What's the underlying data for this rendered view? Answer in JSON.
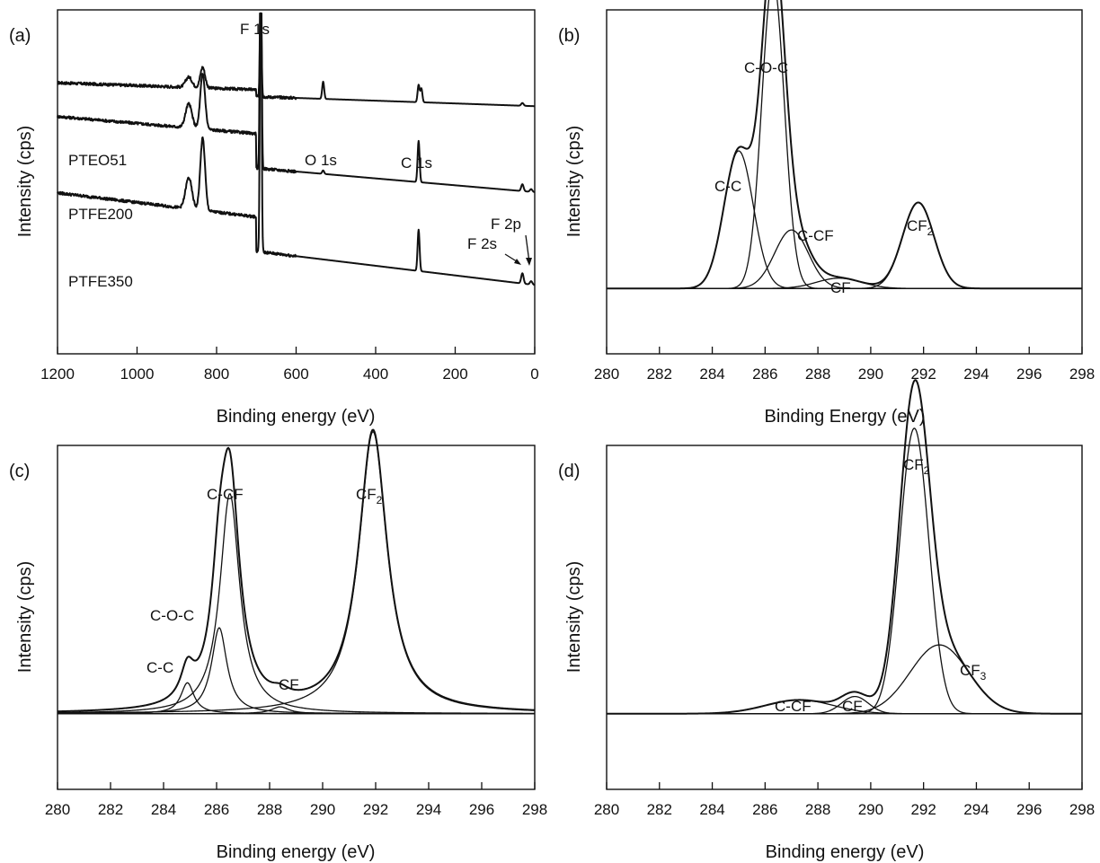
{
  "chart_data": [
    {
      "type": "line",
      "panel_label": "(a)",
      "xlabel": "Binding energy (eV)",
      "ylabel": "Intensity (cps)",
      "xlim": [
        1200,
        0
      ],
      "x_reversed": true,
      "xticks": [
        "1200",
        "1000",
        "800",
        "600",
        "400",
        "200",
        "0"
      ],
      "series": [
        {
          "name": "PTEO51",
          "baseline": 0.72,
          "slope": 4e-05,
          "peaks": [
            {
              "x": 689,
              "h": 0.3,
              "w": 2
            },
            {
              "x": 835,
              "h": 0.06,
              "w": 6
            },
            {
              "x": 870,
              "h": 0.03,
              "w": 8
            },
            {
              "x": 532,
              "h": 0.05,
              "w": 2.5
            },
            {
              "x": 292,
              "h": 0.05,
              "w": 2.5
            },
            {
              "x": 285,
              "h": 0.04,
              "w": 2.5
            },
            {
              "x": 31,
              "h": 0.008,
              "w": 3
            }
          ],
          "step": {
            "x": 700,
            "h": 0.02
          }
        },
        {
          "name": "PTFE200",
          "baseline": 0.47,
          "slope": 0.0001,
          "peaks": [
            {
              "x": 689,
              "h": 0.93,
              "w": 2
            },
            {
              "x": 835,
              "h": 0.16,
              "w": 6
            },
            {
              "x": 870,
              "h": 0.07,
              "w": 8
            },
            {
              "x": 292,
              "h": 0.12,
              "w": 2.5
            },
            {
              "x": 532,
              "h": 0.01,
              "w": 2.5
            },
            {
              "x": 31,
              "h": 0.02,
              "w": 3
            },
            {
              "x": 9,
              "h": 0.008,
              "w": 3
            }
          ],
          "step": {
            "x": 700,
            "h": 0.1
          }
        },
        {
          "name": "PTFE350",
          "baseline": 0.2,
          "slope": 0.00014,
          "peaks": [
            {
              "x": 689,
              "h": 0.98,
              "w": 2
            },
            {
              "x": 835,
              "h": 0.21,
              "w": 6
            },
            {
              "x": 870,
              "h": 0.09,
              "w": 8
            },
            {
              "x": 292,
              "h": 0.12,
              "w": 2.5
            },
            {
              "x": 31,
              "h": 0.03,
              "w": 3
            },
            {
              "x": 9,
              "h": 0.01,
              "w": 3
            }
          ],
          "step": {
            "x": 700,
            "h": 0.1
          }
        }
      ],
      "annotations": [
        "F 1s",
        "O 1s",
        "C 1s",
        "F 2s",
        "F 2p"
      ]
    },
    {
      "type": "line",
      "panel_label": "(b)",
      "xlabel": "Binding Energy (eV)",
      "ylabel": "Intensity (cps)",
      "xlim": [
        280,
        298
      ],
      "xticks": [
        "280",
        "282",
        "284",
        "286",
        "288",
        "290",
        "292",
        "294",
        "296",
        "298"
      ],
      "baseline": 0.19,
      "ymax_plot": 1.0,
      "lineshape": "gaussian",
      "components": [
        {
          "name": "C-C",
          "center": 285.0,
          "height": 0.4,
          "fwhm": 1.3
        },
        {
          "name": "C-O-C",
          "center": 286.3,
          "height": 0.9,
          "fwhm": 1.0
        },
        {
          "name": "C-CF",
          "center": 287.0,
          "height": 0.17,
          "fwhm": 1.5
        },
        {
          "name": "CF",
          "center": 288.8,
          "height": 0.03,
          "fwhm": 2.0
        },
        {
          "name": "CF2",
          "center": 291.8,
          "height": 0.25,
          "fwhm": 1.4
        }
      ],
      "annotations": [
        {
          "text": "C-C"
        },
        {
          "text": "C-O-C"
        },
        {
          "text": "C-CF"
        },
        {
          "text": "CF"
        },
        {
          "text": "CF",
          "sub": "2"
        }
      ]
    },
    {
      "type": "line",
      "panel_label": "(c)",
      "xlabel": "Binding energy (eV)",
      "ylabel": "Intensity (cps)",
      "xlim": [
        280,
        298
      ],
      "xticks": [
        "280",
        "282",
        "284",
        "286",
        "288",
        "290",
        "292",
        "294",
        "296",
        "298"
      ],
      "baseline": 0.22,
      "ymax_plot": 1.0,
      "lineshape": "lorentzian",
      "components": [
        {
          "name": "C-C",
          "center": 284.9,
          "height": 0.09,
          "fwhm": 0.6
        },
        {
          "name": "C-O-C",
          "center": 286.1,
          "height": 0.25,
          "fwhm": 0.7
        },
        {
          "name": "C-CF",
          "center": 286.5,
          "height": 0.64,
          "fwhm": 0.9
        },
        {
          "name": "CF",
          "center": 288.4,
          "height": 0.02,
          "fwhm": 0.8
        },
        {
          "name": "CF2",
          "center": 291.9,
          "height": 0.82,
          "fwhm": 1.3
        }
      ],
      "annotations": [
        {
          "text": "C-C"
        },
        {
          "text": "C-O-C"
        },
        {
          "text": "C-CF"
        },
        {
          "text": "CF"
        },
        {
          "text": "CF",
          "sub": "2"
        }
      ]
    },
    {
      "type": "line",
      "panel_label": "(d)",
      "xlabel": "Binding energy (eV)",
      "ylabel": "Intensity (cps)",
      "xlim": [
        280,
        298
      ],
      "xticks": [
        "280",
        "282",
        "284",
        "286",
        "288",
        "290",
        "292",
        "294",
        "296",
        "298"
      ],
      "baseline": 0.22,
      "ymax_plot": 1.0,
      "lineshape": "gaussian",
      "components": [
        {
          "name": "C-CF",
          "center": 287.3,
          "height": 0.04,
          "fwhm": 3.0
        },
        {
          "name": "CF",
          "center": 289.4,
          "height": 0.05,
          "fwhm": 1.2
        },
        {
          "name": "CF2",
          "center": 291.65,
          "height": 0.83,
          "fwhm": 1.3
        },
        {
          "name": "CF3",
          "center": 292.6,
          "height": 0.2,
          "fwhm": 2.6
        }
      ],
      "annotations": [
        {
          "text": "C-CF"
        },
        {
          "text": "CF"
        },
        {
          "text": "CF",
          "sub": "2"
        },
        {
          "text": "CF",
          "sub": "3"
        }
      ]
    }
  ]
}
